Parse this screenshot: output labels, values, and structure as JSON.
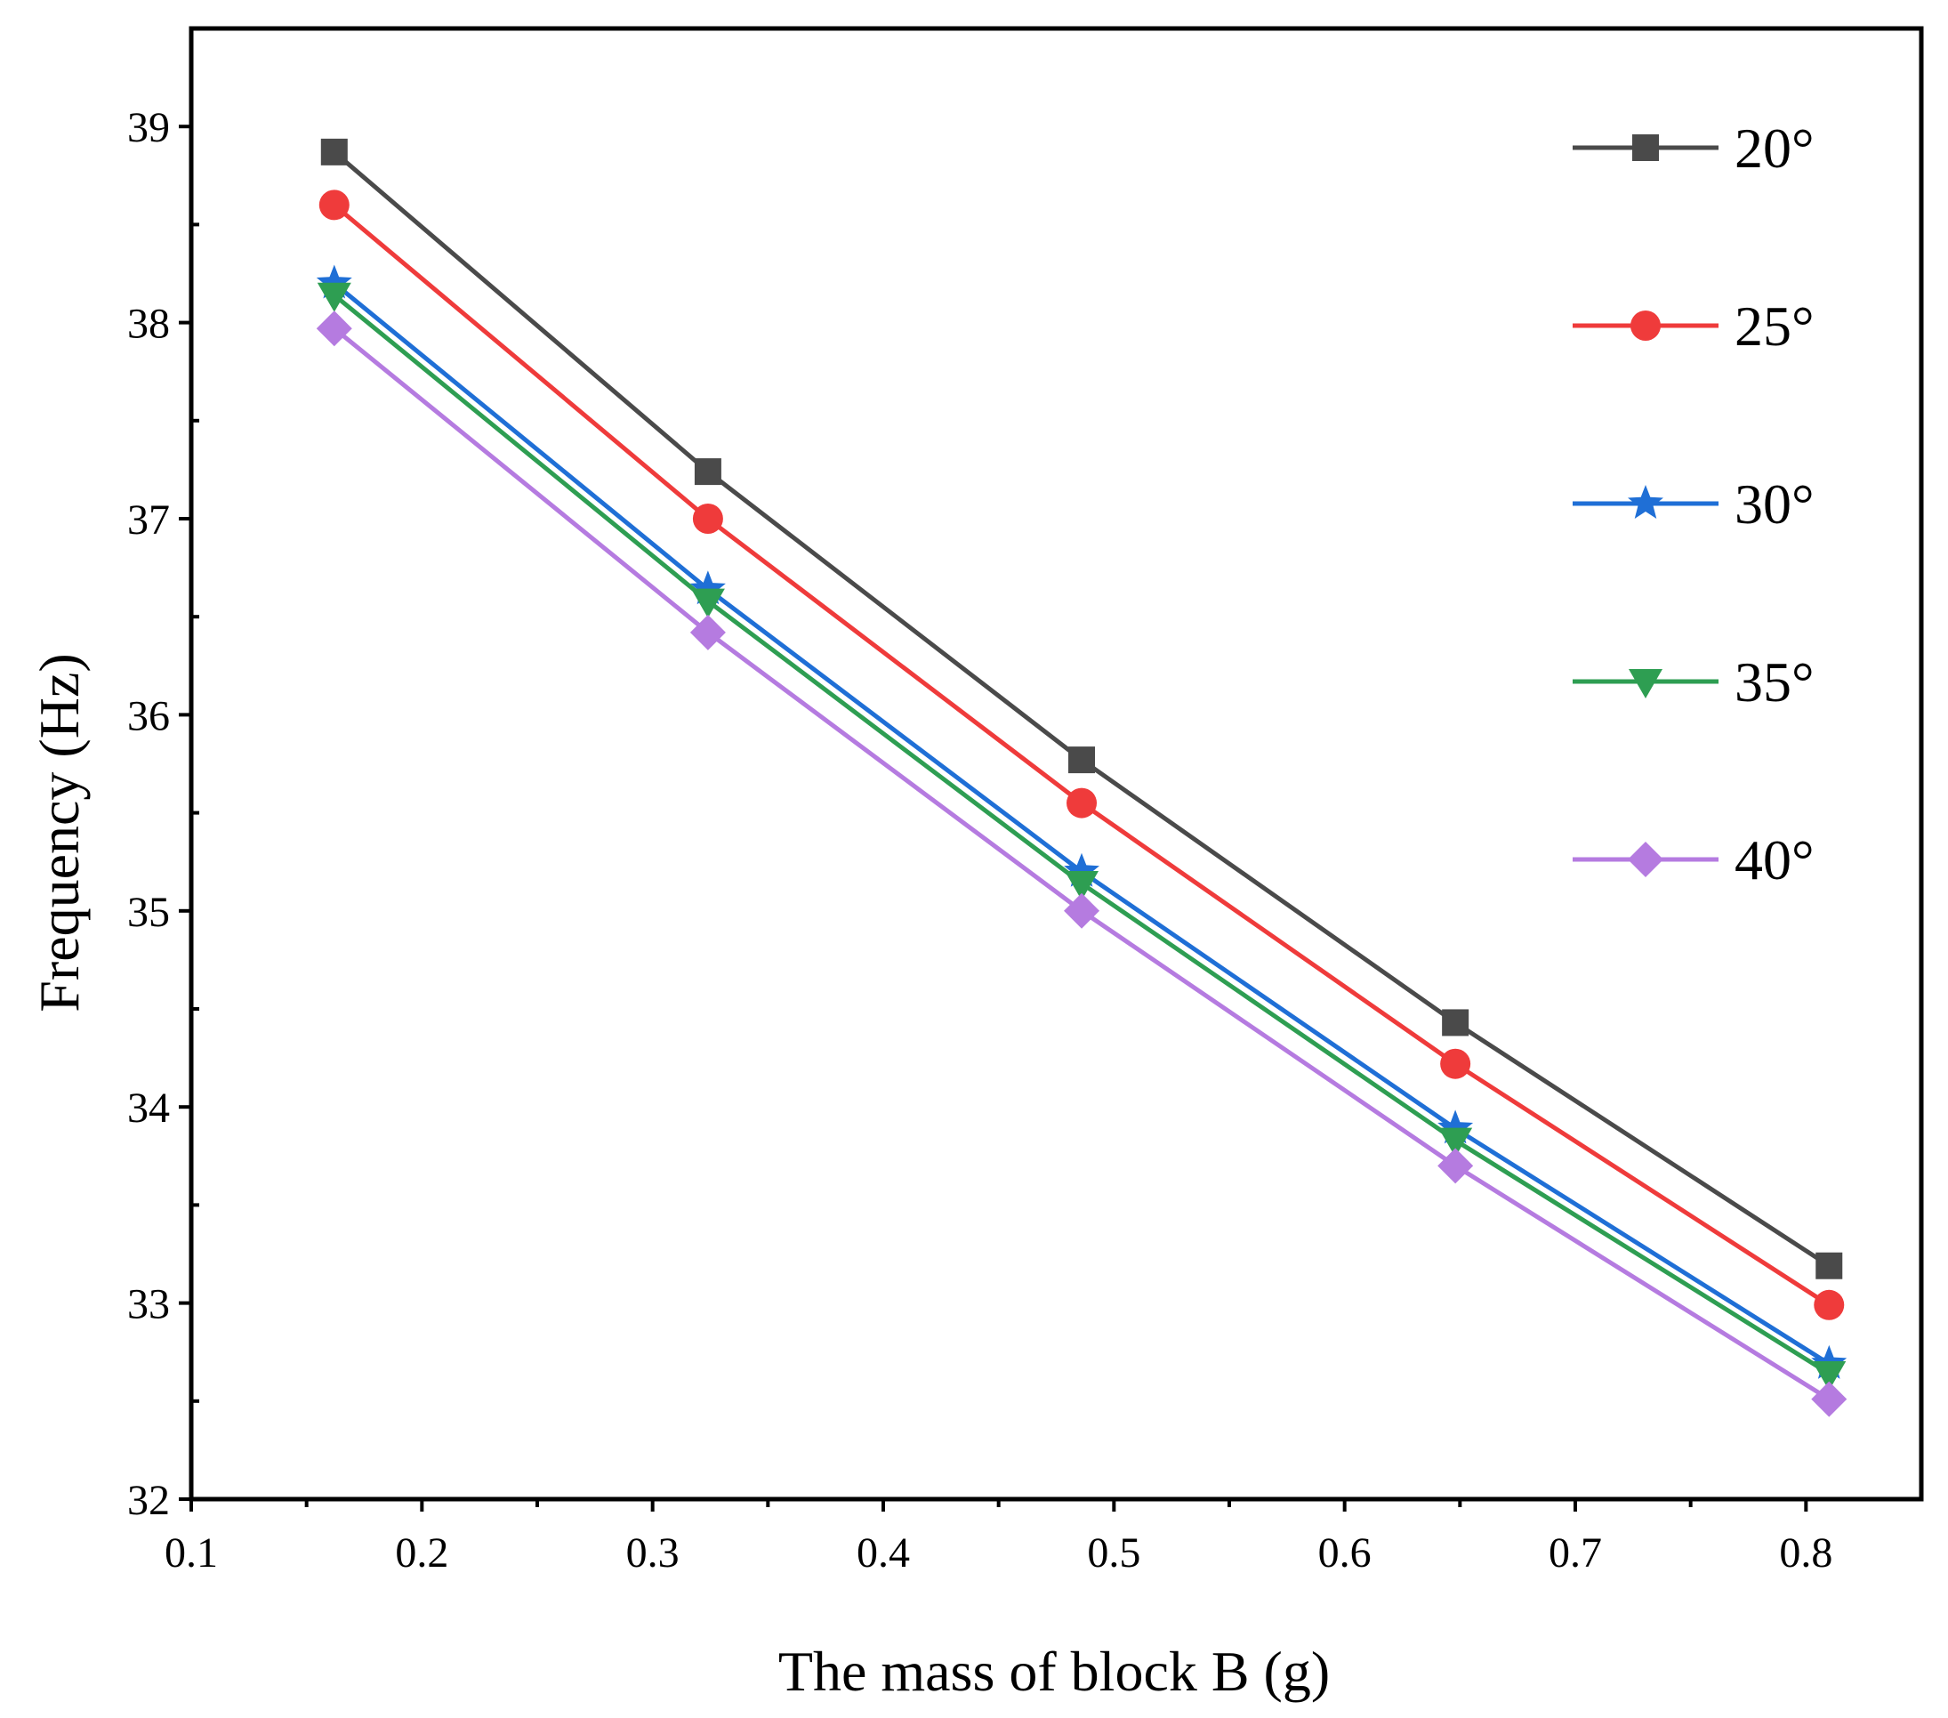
{
  "chart_data": {
    "type": "line",
    "title": "",
    "xlabel": "The mass of block B (g)",
    "ylabel": "Frequency (Hz)",
    "xlim": [
      0.1,
      0.85
    ],
    "ylim": [
      32,
      39.5
    ],
    "xticks": [
      0.1,
      0.2,
      0.3,
      0.4,
      0.5,
      0.6,
      0.7,
      0.8
    ],
    "xtick_labels": [
      "0.1",
      "0.2",
      "0.3",
      "0.4",
      "0.5",
      "0.6",
      "0.7",
      "0.8"
    ],
    "yticks": [
      32,
      33,
      34,
      35,
      36,
      37,
      38,
      39
    ],
    "ytick_labels": [
      "32",
      "33",
      "34",
      "35",
      "36",
      "37",
      "38",
      "39"
    ],
    "grid": false,
    "legend_position": "top-right",
    "x": [
      0.162,
      0.324,
      0.486,
      0.648,
      0.81
    ],
    "series": [
      {
        "name": "20°",
        "color": "#4a4a4a",
        "marker": "square",
        "values": [
          38.87,
          37.24,
          35.77,
          34.43,
          33.19
        ]
      },
      {
        "name": "25°",
        "color": "#ef3b3b",
        "marker": "circle",
        "values": [
          38.6,
          37.0,
          35.55,
          34.22,
          32.99
        ]
      },
      {
        "name": "30°",
        "color": "#1f6fd6",
        "marker": "star",
        "values": [
          38.2,
          36.64,
          35.2,
          33.89,
          32.69
        ]
      },
      {
        "name": "35°",
        "color": "#2e9e52",
        "marker": "triangle-down",
        "values": [
          38.14,
          36.58,
          35.14,
          33.83,
          32.64
        ]
      },
      {
        "name": "40°",
        "color": "#b57be0",
        "marker": "diamond",
        "values": [
          37.97,
          36.42,
          35.0,
          33.7,
          32.51
        ]
      }
    ]
  }
}
